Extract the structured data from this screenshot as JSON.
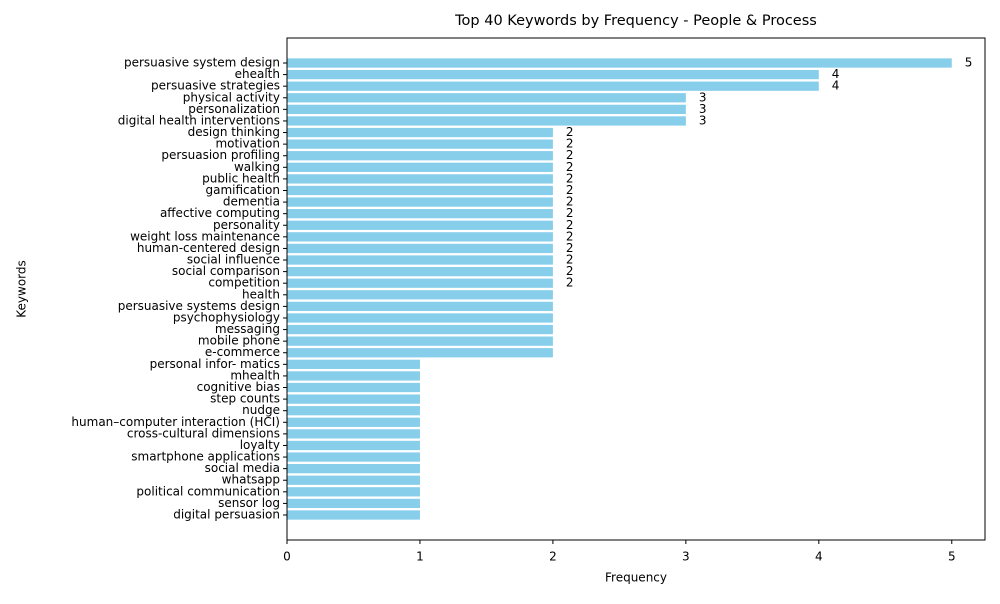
{
  "chart_data": {
    "type": "barh",
    "title": "Top 40 Keywords by Frequency - People & Process",
    "x_label": "Frequency",
    "y_label": "Keywords",
    "color": "#87ceeb",
    "categories": [
      "persuasive system design",
      "ehealth",
      "persuasive strategies",
      "physical activity",
      "personalization",
      "digital health interventions",
      "design thinking",
      "motivation",
      "persuasion profiling",
      "walking",
      "public health",
      "gamification",
      "dementia",
      "affective computing",
      "personality",
      "weight loss maintenance",
      "human-centered design",
      "social influence",
      "social comparison",
      "competition",
      "health",
      "persuasive systems design",
      "psychophysiology",
      "messaging",
      "mobile phone",
      "e-commerce",
      "personal infor- matics",
      "mhealth",
      "cognitive bias",
      "step counts",
      "nudge",
      "human–computer interaction (HCI)",
      "cross-cultural dimensions",
      "loyalty",
      "smartphone applications",
      "social media",
      "whatsapp",
      "political communication",
      "sensor log",
      "digital persuasion"
    ],
    "values": [
      5,
      4,
      4,
      3,
      3,
      3,
      2,
      2,
      2,
      2,
      2,
      2,
      2,
      2,
      2,
      2,
      2,
      2,
      2,
      2,
      2,
      2,
      2,
      2,
      2,
      2,
      1,
      1,
      1,
      1,
      1,
      1,
      1,
      1,
      1,
      1,
      1,
      1,
      1,
      1
    ],
    "value_labels": [
      5,
      4,
      4,
      3,
      3,
      3,
      2,
      2,
      2,
      2,
      2,
      2,
      2,
      2,
      2,
      2,
      2,
      2,
      2,
      2,
      null,
      null,
      null,
      null,
      null,
      null,
      null,
      null,
      null,
      null,
      null,
      null,
      null,
      null,
      null,
      null,
      null,
      null,
      null,
      null
    ],
    "xlim": [
      0,
      5.25
    ],
    "xticks": [
      0,
      1,
      2,
      3,
      4,
      5
    ]
  }
}
